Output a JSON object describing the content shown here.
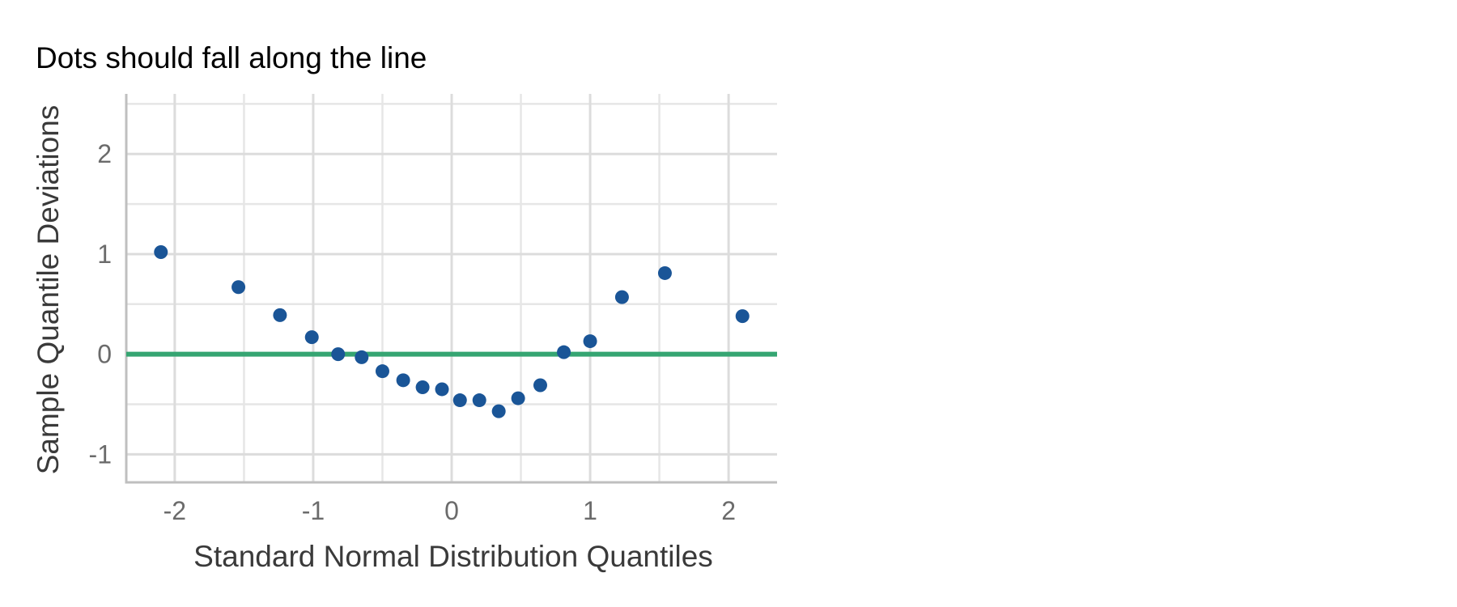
{
  "chart_data": {
    "type": "scatter",
    "title": "Dots should fall along the line",
    "xlabel": "Standard Normal Distribution Quantiles",
    "ylabel": "Sample Quantile Deviations",
    "xlim": [
      -2.35,
      2.35
    ],
    "ylim": [
      -1.28,
      2.6
    ],
    "x_ticks": [
      -2,
      -1,
      0,
      1,
      2
    ],
    "x_tick_labels": [
      "-2",
      "-1",
      "0",
      "1",
      "2"
    ],
    "x_minor_ticks": [
      -1.5,
      -0.5,
      0.5,
      1.5
    ],
    "y_ticks": [
      -1,
      0,
      1,
      2
    ],
    "y_tick_labels": [
      "-1",
      "0",
      "1",
      "2"
    ],
    "y_minor_ticks": [
      -0.5,
      0.5,
      1.5,
      2.5
    ],
    "grid": true,
    "reference_line": {
      "y": 0,
      "color": "#35a572"
    },
    "point_color": "#1a5597",
    "points": [
      {
        "x": -2.1,
        "y": 1.02
      },
      {
        "x": -1.54,
        "y": 0.67
      },
      {
        "x": -1.24,
        "y": 0.39
      },
      {
        "x": -1.01,
        "y": 0.17
      },
      {
        "x": -0.82,
        "y": 0.0
      },
      {
        "x": -0.65,
        "y": -0.03
      },
      {
        "x": -0.5,
        "y": -0.17
      },
      {
        "x": -0.35,
        "y": -0.26
      },
      {
        "x": -0.21,
        "y": -0.33
      },
      {
        "x": -0.07,
        "y": -0.35
      },
      {
        "x": 0.06,
        "y": -0.46
      },
      {
        "x": 0.2,
        "y": -0.46
      },
      {
        "x": 0.34,
        "y": -0.57
      },
      {
        "x": 0.48,
        "y": -0.44
      },
      {
        "x": 0.64,
        "y": -0.31
      },
      {
        "x": 0.81,
        "y": 0.02
      },
      {
        "x": 1.0,
        "y": 0.13
      },
      {
        "x": 1.23,
        "y": 0.57
      },
      {
        "x": 1.54,
        "y": 0.81
      },
      {
        "x": 2.1,
        "y": 0.38
      }
    ]
  }
}
